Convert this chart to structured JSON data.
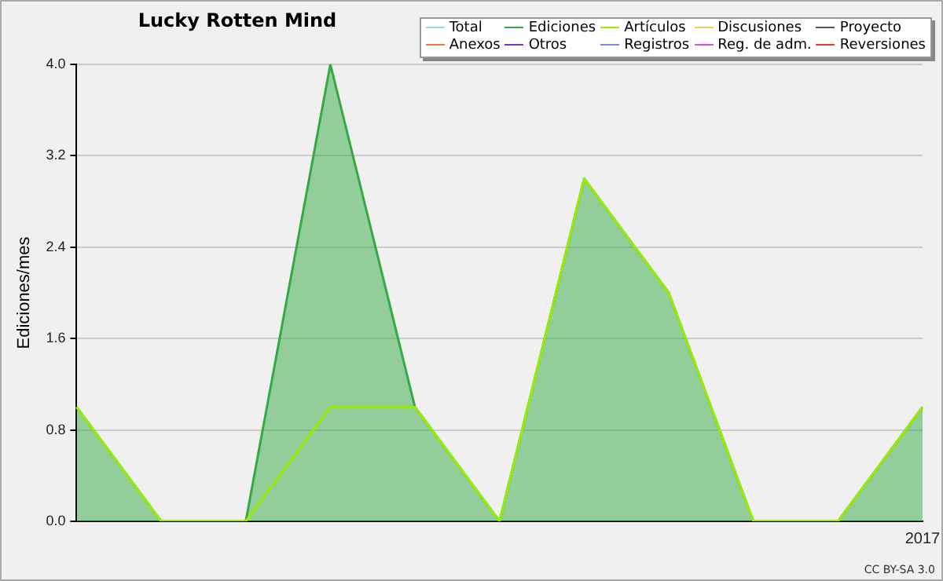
{
  "chart_data": {
    "type": "area",
    "title": "Lucky Rotten Mind",
    "ylabel": "Ediciones/mes",
    "categories": [
      null,
      null,
      null,
      null,
      null,
      null,
      null,
      null,
      null,
      null,
      "2017"
    ],
    "series": [
      {
        "name": "Total",
        "color": "#99dddd",
        "values": [
          null,
          null,
          null,
          null,
          null,
          null,
          null,
          null,
          null,
          null,
          null
        ]
      },
      {
        "name": "Ediciones",
        "color": "#33aa44",
        "values": [
          1,
          0,
          0,
          4,
          1,
          0,
          3,
          2,
          0,
          0,
          1
        ]
      },
      {
        "name": "Artículos",
        "type": "line",
        "color": "#99ee00",
        "values": [
          1,
          0,
          0,
          1,
          1,
          0,
          3,
          2,
          0,
          0,
          1
        ]
      },
      {
        "name": "Discusiones",
        "color": "#eecc55",
        "values": [
          null,
          null,
          null,
          null,
          null,
          null,
          null,
          null,
          null,
          null,
          null
        ]
      },
      {
        "name": "Proyecto",
        "color": "#555555",
        "values": [
          null,
          null,
          null,
          null,
          null,
          null,
          null,
          null,
          null,
          null,
          null
        ]
      },
      {
        "name": "Anexos",
        "color": "#ee7744",
        "values": [
          null,
          null,
          null,
          null,
          null,
          null,
          null,
          null,
          null,
          null,
          null
        ]
      },
      {
        "name": "Otros",
        "color": "#7733cc",
        "values": [
          null,
          null,
          null,
          null,
          null,
          null,
          null,
          null,
          null,
          null,
          null
        ]
      },
      {
        "name": "Registros",
        "color": "#7788ee",
        "values": [
          null,
          null,
          null,
          null,
          null,
          null,
          null,
          null,
          null,
          null,
          null
        ]
      },
      {
        "name": "Reg. de adm.",
        "color": "#cc55dd",
        "values": [
          null,
          null,
          null,
          null,
          null,
          null,
          null,
          null,
          null,
          null,
          null
        ]
      },
      {
        "name": "Reversiones",
        "color": "#ee3333",
        "values": [
          null,
          null,
          null,
          null,
          null,
          null,
          null,
          null,
          null,
          null,
          null
        ]
      }
    ],
    "ylim": [
      0,
      4
    ],
    "yticks": [
      {
        "value": 0,
        "label": "0.0"
      },
      {
        "value": 0.8,
        "label": "0.8"
      },
      {
        "value": 1.6,
        "label": "1.6"
      },
      {
        "value": 2.4,
        "label": "2.4"
      },
      {
        "value": 3.2,
        "label": "3.2"
      },
      {
        "value": 4,
        "label": "4.0"
      }
    ],
    "grid": "y",
    "legend": "top right",
    "marker": "none",
    "annotations": [
      "CC BY-SA 3.0"
    ]
  }
}
